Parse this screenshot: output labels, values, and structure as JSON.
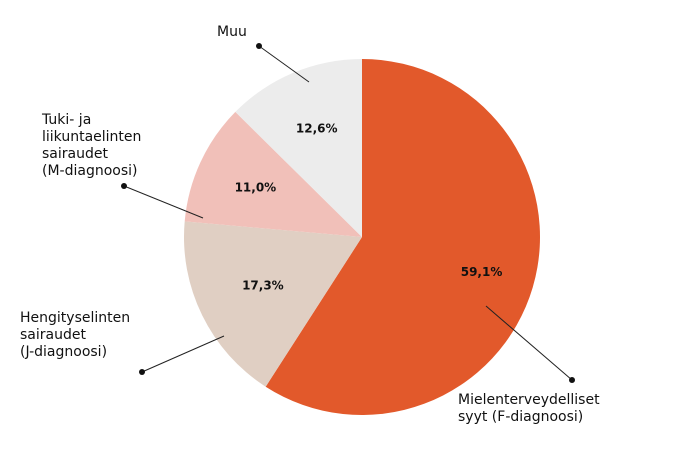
{
  "chart_data": {
    "type": "pie",
    "title": "",
    "start_angle_deg": 0,
    "direction": "clockwise",
    "slices": [
      {
        "key": "f",
        "label_lines": [
          "Mielenterveydelliset",
          "syyt (F-diagnoosi)"
        ],
        "value": 59.1,
        "value_label": "59,1%",
        "color": "#e2592b"
      },
      {
        "key": "j",
        "label_lines": [
          "Hengityselinten",
          "sairaudet",
          "(J-diagnoosi)"
        ],
        "value": 17.3,
        "value_label": "17,3%",
        "color": "#e0cfc3"
      },
      {
        "key": "m",
        "label_lines": [
          "Tuki- ja",
          "liikuntaelinten",
          "sairaudet",
          "(M-diagnoosi)"
        ],
        "value": 11.0,
        "value_label": "11,0%",
        "color": "#f1c0b9"
      },
      {
        "key": "muu",
        "label_lines": [
          "Muu"
        ],
        "value": 12.6,
        "value_label": "12,6%",
        "color": "#ececec"
      }
    ]
  }
}
